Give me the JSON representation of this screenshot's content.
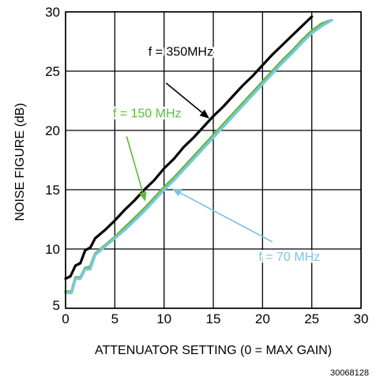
{
  "chart_data": {
    "type": "line",
    "title": "",
    "xlabel": "ATTENUATOR SETTING (0 = MAX GAIN)",
    "ylabel": "NOISE FIGURE (dB)",
    "xlim": [
      0,
      30
    ],
    "ylim": [
      5,
      30
    ],
    "xticks": [
      "0",
      "5",
      "10",
      "15",
      "20",
      "25",
      "30"
    ],
    "yticks": [
      "5",
      "10",
      "15",
      "20",
      "25",
      "30"
    ],
    "grid": true,
    "series": [
      {
        "name": "f = 350MHz",
        "color": "#000000",
        "points": [
          [
            0,
            7.5
          ],
          [
            0.5,
            7.7
          ],
          [
            1,
            8.6
          ],
          [
            1.5,
            8.8
          ],
          [
            2,
            9.9
          ],
          [
            2.5,
            10.1
          ],
          [
            3,
            10.9
          ],
          [
            4,
            11.6
          ],
          [
            5,
            12.4
          ],
          [
            6,
            13.3
          ],
          [
            7,
            14.1
          ],
          [
            8,
            15.0
          ],
          [
            9,
            15.8
          ],
          [
            10,
            16.8
          ],
          [
            11,
            17.6
          ],
          [
            12,
            18.6
          ],
          [
            13,
            19.4
          ],
          [
            14,
            20.3
          ],
          [
            15,
            21.2
          ],
          [
            16,
            22.0
          ],
          [
            17,
            22.9
          ],
          [
            18,
            23.8
          ],
          [
            19,
            24.6
          ],
          [
            20,
            25.5
          ],
          [
            21,
            26.4
          ],
          [
            22,
            27.2
          ],
          [
            23,
            28.0
          ],
          [
            24,
            28.8
          ],
          [
            25,
            29.6
          ]
        ]
      },
      {
        "name": "f = 150 MHz",
        "color": "#5dbb3f",
        "points": [
          [
            0,
            6.4
          ],
          [
            0.6,
            6.4
          ],
          [
            1,
            7.6
          ],
          [
            1.5,
            7.6
          ],
          [
            2,
            8.4
          ],
          [
            2.5,
            8.5
          ],
          [
            3,
            9.6
          ],
          [
            4,
            10.3
          ],
          [
            5,
            11.0
          ],
          [
            6,
            11.8
          ],
          [
            7,
            12.6
          ],
          [
            8,
            13.4
          ],
          [
            9,
            14.3
          ],
          [
            10,
            15.2
          ],
          [
            11,
            16.0
          ],
          [
            12,
            16.9
          ],
          [
            13,
            17.8
          ],
          [
            14,
            18.7
          ],
          [
            15,
            19.6
          ],
          [
            16,
            20.5
          ],
          [
            17,
            21.4
          ],
          [
            18,
            22.3
          ],
          [
            19,
            23.2
          ],
          [
            20,
            24.1
          ],
          [
            21,
            25.0
          ],
          [
            22,
            25.9
          ],
          [
            23,
            26.7
          ],
          [
            24,
            27.6
          ],
          [
            25,
            28.4
          ],
          [
            26,
            29.0
          ],
          [
            27,
            29.3
          ]
        ]
      },
      {
        "name": "f = 70 MHz",
        "color": "#7ec4de",
        "points": [
          [
            0,
            6.3
          ],
          [
            0.6,
            6.3
          ],
          [
            1,
            7.5
          ],
          [
            1.5,
            7.5
          ],
          [
            2,
            8.3
          ],
          [
            2.5,
            8.3
          ],
          [
            3,
            9.5
          ],
          [
            4,
            10.2
          ],
          [
            5,
            10.9
          ],
          [
            6,
            11.6
          ],
          [
            7,
            12.4
          ],
          [
            8,
            13.2
          ],
          [
            9,
            14.1
          ],
          [
            10,
            15.0
          ],
          [
            11,
            15.8
          ],
          [
            12,
            16.7
          ],
          [
            13,
            17.6
          ],
          [
            14,
            18.5
          ],
          [
            15,
            19.4
          ],
          [
            16,
            20.3
          ],
          [
            17,
            21.2
          ],
          [
            18,
            22.1
          ],
          [
            19,
            23.0
          ],
          [
            20,
            23.9
          ],
          [
            21,
            24.8
          ],
          [
            22,
            25.7
          ],
          [
            23,
            26.5
          ],
          [
            24,
            27.4
          ],
          [
            25,
            28.2
          ],
          [
            26,
            28.8
          ],
          [
            27,
            29.3
          ]
        ]
      }
    ],
    "annotations": [
      {
        "label": "f = 350MHz",
        "color": "#000000",
        "text_at": [
          8.4,
          26.3
        ],
        "arrow_from": [
          10.2,
          24.0
        ],
        "arrow_to": [
          14.6,
          21.0
        ]
      },
      {
        "label": "f = 150 MHz",
        "color": "#5dbb3f",
        "text_at": [
          4.8,
          21.1
        ],
        "arrow_from": [
          6.2,
          19.5
        ],
        "arrow_to": [
          8.1,
          14.0
        ]
      },
      {
        "label": "f = 70 MHz",
        "color": "#7ec4de",
        "text_at": [
          19.6,
          9.0
        ],
        "arrow_from": [
          21.0,
          10.6
        ],
        "arrow_to": [
          10.8,
          15.1
        ]
      }
    ],
    "figure_id": "30068128"
  }
}
